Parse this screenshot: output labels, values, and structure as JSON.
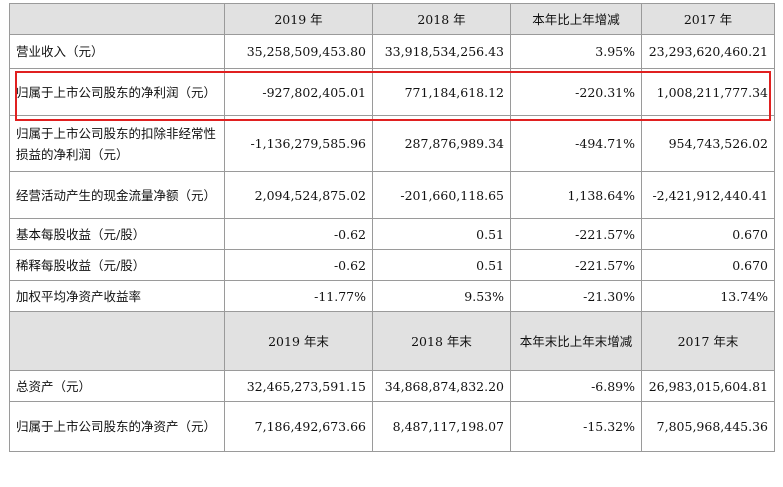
{
  "table": {
    "header1": [
      "",
      "2019 年",
      "2018 年",
      "本年比上年增减",
      "2017 年"
    ],
    "rows1": [
      {
        "label": "营业收入（元）",
        "values": [
          "35,258,509,453.80",
          "33,918,534,256.43",
          "3.95%",
          "23,293,620,460.21"
        ]
      },
      {
        "label": "归属于上市公司股东的净利润（元）",
        "values": [
          "-927,802,405.01",
          "771,184,618.12",
          "-220.31%",
          "1,008,211,777.34"
        ]
      },
      {
        "label": "归属于上市公司股东的扣除非经常性损益的净利润（元）",
        "values": [
          "-1,136,279,585.96",
          "287,876,989.34",
          "-494.71%",
          "954,743,526.02"
        ]
      },
      {
        "label": "经营活动产生的现金流量净额（元）",
        "values": [
          "2,094,524,875.02",
          "-201,660,118.65",
          "1,138.64%",
          "-2,421,912,440.41"
        ]
      },
      {
        "label": "基本每股收益（元/股）",
        "values": [
          "-0.62",
          "0.51",
          "-221.57%",
          "0.670"
        ]
      },
      {
        "label": "稀释每股收益（元/股）",
        "values": [
          "-0.62",
          "0.51",
          "-221.57%",
          "0.670"
        ]
      },
      {
        "label": "加权平均净资产收益率",
        "values": [
          "-11.77%",
          "9.53%",
          "-21.30%",
          "13.74%"
        ]
      }
    ],
    "header2": [
      "",
      "2019 年末",
      "2018 年末",
      "本年末比上年末增减",
      "2017 年末"
    ],
    "rows2": [
      {
        "label": "总资产（元）",
        "values": [
          "32,465,273,591.15",
          "34,868,874,832.20",
          "-6.89%",
          "26,983,015,604.81"
        ]
      },
      {
        "label": "归属于上市公司股东的净资产（元）",
        "values": [
          "7,186,492,673.66",
          "8,487,117,198.07",
          "-15.32%",
          "7,805,968,445.36"
        ]
      }
    ]
  },
  "highlight": {
    "color": "#e02020"
  }
}
